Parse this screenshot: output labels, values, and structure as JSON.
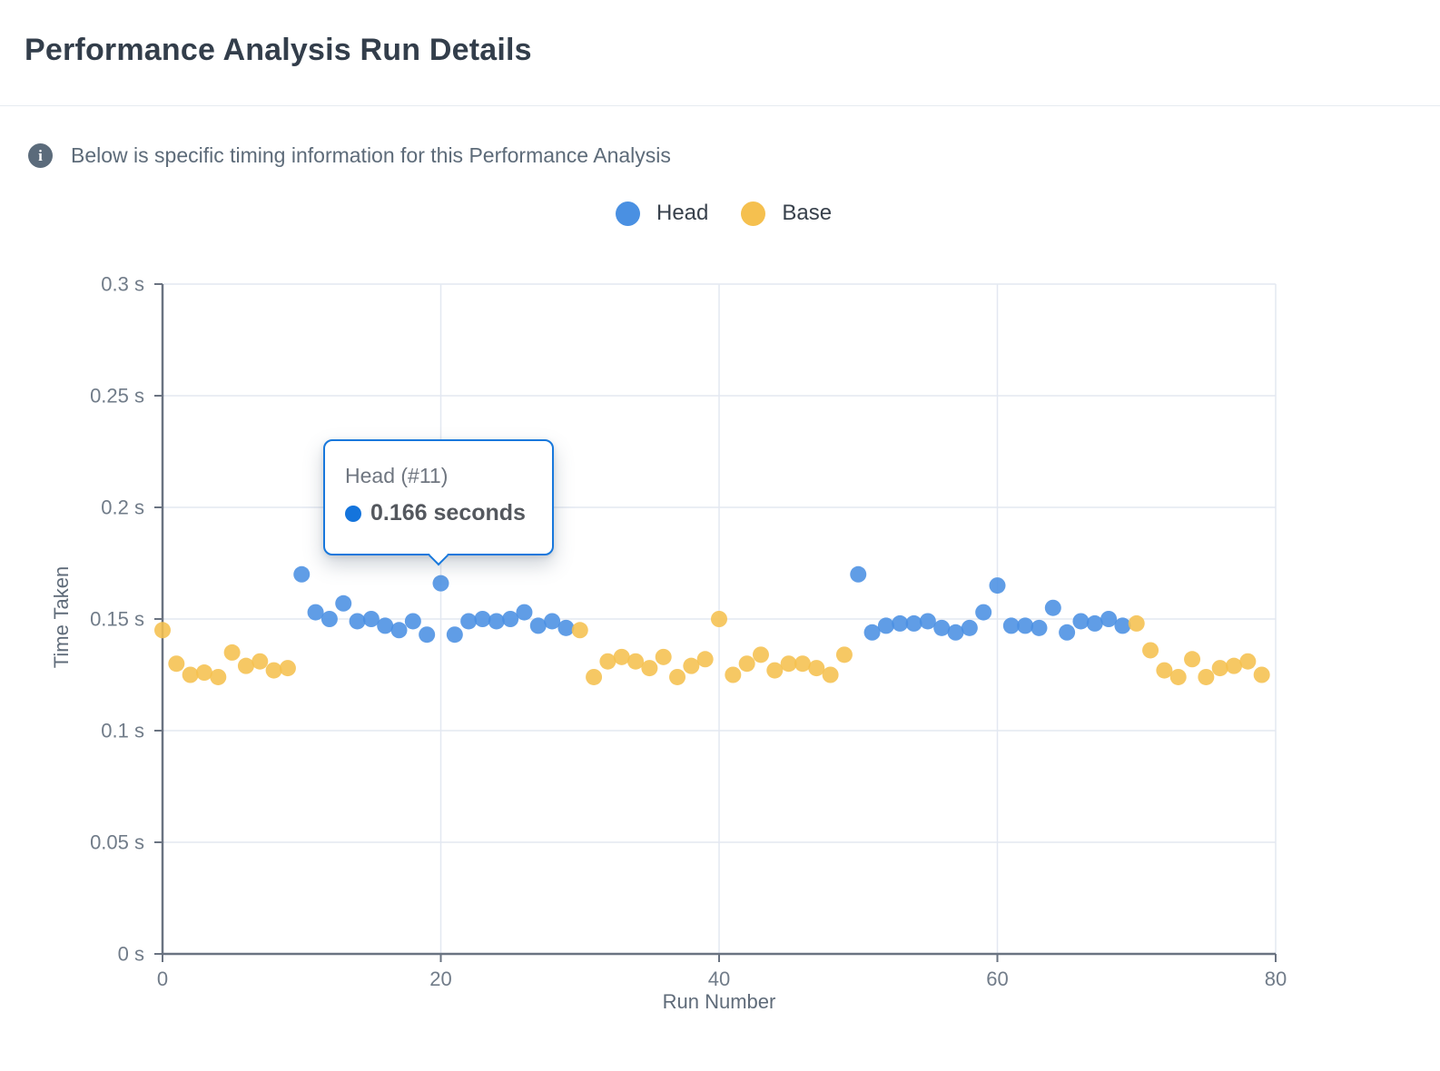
{
  "page": {
    "title": "Performance Analysis Run Details"
  },
  "info": {
    "text": "Below is specific timing information for this Performance Analysis"
  },
  "legend": {
    "items": [
      {
        "label": "Head",
        "color": "#4a90e2"
      },
      {
        "label": "Base",
        "color": "#f5c04f"
      }
    ]
  },
  "tooltip": {
    "title": "Head (#11)",
    "value": "0.166 seconds",
    "accent": "#1474dc"
  },
  "colors": {
    "head": "#4a90e2",
    "base": "#f5c04f",
    "axis_line": "#6a7381",
    "grid_line": "#e3e8f1",
    "tick_text": "#717c89"
  },
  "chart_data": {
    "type": "scatter",
    "xlabel": "Run Number",
    "ylabel": "Time Taken",
    "xlim": [
      0,
      80
    ],
    "ylim": [
      0,
      0.3
    ],
    "x_ticks": [
      0,
      20,
      40,
      60,
      80
    ],
    "y_ticks": [
      0,
      0.05,
      0.1,
      0.15,
      0.2,
      0.25,
      0.3
    ],
    "y_tick_labels": [
      "0 s",
      "0.05 s",
      "0.1 s",
      "0.15 s",
      "0.2 s",
      "0.25 s",
      "0.3 s"
    ],
    "grid": true,
    "legend_position": "top",
    "point_radius": 9,
    "series": [
      {
        "name": "Head",
        "color": "#4a90e2",
        "points": [
          [
            10,
            0.17
          ],
          [
            11,
            0.153
          ],
          [
            12,
            0.15
          ],
          [
            13,
            0.157
          ],
          [
            14,
            0.149
          ],
          [
            15,
            0.15
          ],
          [
            16,
            0.147
          ],
          [
            17,
            0.145
          ],
          [
            18,
            0.149
          ],
          [
            19,
            0.143
          ],
          [
            20,
            0.166
          ],
          [
            21,
            0.143
          ],
          [
            22,
            0.149
          ],
          [
            23,
            0.15
          ],
          [
            24,
            0.149
          ],
          [
            25,
            0.15
          ],
          [
            26,
            0.153
          ],
          [
            27,
            0.147
          ],
          [
            28,
            0.149
          ],
          [
            29,
            0.146
          ],
          [
            50,
            0.17
          ],
          [
            51,
            0.144
          ],
          [
            52,
            0.147
          ],
          [
            53,
            0.148
          ],
          [
            54,
            0.148
          ],
          [
            55,
            0.149
          ],
          [
            56,
            0.146
          ],
          [
            57,
            0.144
          ],
          [
            58,
            0.146
          ],
          [
            59,
            0.153
          ],
          [
            60,
            0.165
          ],
          [
            61,
            0.147
          ],
          [
            62,
            0.147
          ],
          [
            63,
            0.146
          ],
          [
            64,
            0.155
          ],
          [
            65,
            0.144
          ],
          [
            66,
            0.149
          ],
          [
            67,
            0.148
          ],
          [
            68,
            0.15
          ],
          [
            69,
            0.147
          ]
        ]
      },
      {
        "name": "Base",
        "color": "#f5c04f",
        "points": [
          [
            0,
            0.145
          ],
          [
            1,
            0.13
          ],
          [
            2,
            0.125
          ],
          [
            3,
            0.126
          ],
          [
            4,
            0.124
          ],
          [
            5,
            0.135
          ],
          [
            6,
            0.129
          ],
          [
            7,
            0.131
          ],
          [
            8,
            0.127
          ],
          [
            9,
            0.128
          ],
          [
            30,
            0.145
          ],
          [
            31,
            0.124
          ],
          [
            32,
            0.131
          ],
          [
            33,
            0.133
          ],
          [
            34,
            0.131
          ],
          [
            35,
            0.128
          ],
          [
            36,
            0.133
          ],
          [
            37,
            0.124
          ],
          [
            38,
            0.129
          ],
          [
            39,
            0.132
          ],
          [
            40,
            0.15
          ],
          [
            41,
            0.125
          ],
          [
            42,
            0.13
          ],
          [
            43,
            0.134
          ],
          [
            44,
            0.127
          ],
          [
            45,
            0.13
          ],
          [
            46,
            0.13
          ],
          [
            47,
            0.128
          ],
          [
            48,
            0.125
          ],
          [
            49,
            0.134
          ],
          [
            70,
            0.148
          ],
          [
            71,
            0.136
          ],
          [
            72,
            0.127
          ],
          [
            73,
            0.124
          ],
          [
            74,
            0.132
          ],
          [
            75,
            0.124
          ],
          [
            76,
            0.128
          ],
          [
            77,
            0.129
          ],
          [
            78,
            0.131
          ],
          [
            79,
            0.125
          ]
        ]
      }
    ],
    "tooltip_point": {
      "series": "Head",
      "x": 20,
      "y": 0.166
    }
  }
}
